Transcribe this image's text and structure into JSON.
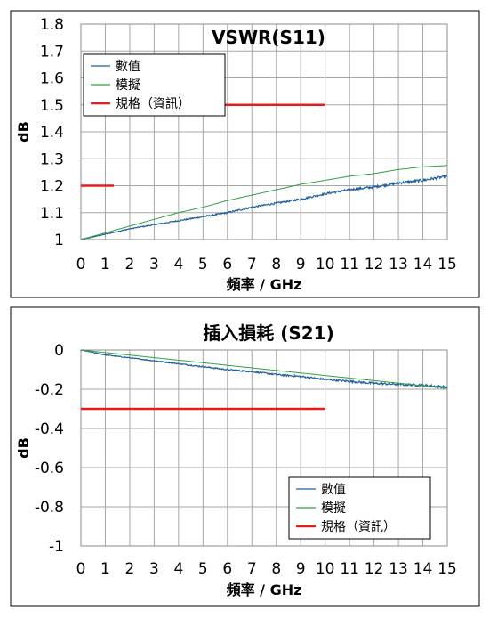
{
  "chart_data": [
    {
      "type": "line",
      "title": "VSWR(S11)",
      "xlabel": "頻率 / GHz",
      "ylabel": "dB",
      "xlim": [
        0,
        15
      ],
      "ylim": [
        1,
        1.8
      ],
      "xticks": [
        0,
        1,
        2,
        3,
        4,
        5,
        6,
        7,
        8,
        9,
        10,
        11,
        12,
        13,
        14,
        15
      ],
      "xtick_labels": [
        "0",
        "1",
        "2",
        "3",
        "4",
        "5",
        "6",
        "7",
        "8",
        "9",
        "10",
        "11",
        "12",
        "13",
        "14",
        "15"
      ],
      "yticks": [
        1,
        1.1,
        1.2,
        1.3,
        1.4,
        1.5,
        1.6,
        1.7,
        1.8
      ],
      "ytick_labels": [
        "1",
        "1.1",
        "1.2",
        "1.3",
        "1.4",
        "1.5",
        "1.6",
        "1.7",
        "1.8"
      ],
      "grid": true,
      "legend_position": "top-left",
      "series": [
        {
          "name": "數值",
          "color": "#1f5f9c",
          "noisy": true,
          "x": [
            0,
            1,
            2,
            3,
            4,
            5,
            6,
            7,
            8,
            9,
            10,
            11,
            12,
            13,
            14,
            15
          ],
          "y": [
            1.0,
            1.02,
            1.04,
            1.055,
            1.07,
            1.085,
            1.1,
            1.12,
            1.135,
            1.15,
            1.17,
            1.185,
            1.195,
            1.21,
            1.22,
            1.235
          ]
        },
        {
          "name": "模擬",
          "color": "#2ea043",
          "noisy": false,
          "x": [
            0,
            1,
            2,
            3,
            4,
            5,
            6,
            7,
            8,
            9,
            10,
            11,
            12,
            13,
            14,
            15
          ],
          "y": [
            1.0,
            1.025,
            1.05,
            1.075,
            1.1,
            1.12,
            1.145,
            1.165,
            1.185,
            1.205,
            1.22,
            1.235,
            1.245,
            1.26,
            1.27,
            1.275
          ]
        },
        {
          "name": "規格（資訊）",
          "color": "#e81c1c",
          "noisy": false,
          "segments": [
            {
              "x": [
                0,
                1.35
              ],
              "y": [
                1.2,
                1.2
              ]
            },
            {
              "x": [
                1.25,
                10
              ],
              "y": [
                1.5,
                1.5
              ]
            }
          ]
        }
      ]
    },
    {
      "type": "line",
      "title": "插入損耗 (S21)",
      "xlabel": "頻率 / GHz",
      "ylabel": "dB",
      "xlim": [
        0,
        15
      ],
      "ylim": [
        -1,
        0
      ],
      "xticks": [
        0,
        1,
        2,
        3,
        4,
        5,
        6,
        7,
        8,
        9,
        10,
        11,
        12,
        13,
        14,
        15
      ],
      "xtick_labels": [
        "0",
        "1",
        "2",
        "3",
        "4",
        "5",
        "6",
        "7",
        "8",
        "9",
        "10",
        "11",
        "12",
        "13",
        "14",
        "15"
      ],
      "yticks": [
        0,
        -0.2,
        -0.4,
        -0.6,
        -0.8,
        -1
      ],
      "ytick_labels": [
        "0",
        "-0.2",
        "-0.4",
        "-0.6",
        "-0.8",
        "-1"
      ],
      "grid": true,
      "legend_position": "bottom-right",
      "series": [
        {
          "name": "數值",
          "color": "#1f5f9c",
          "noisy": true,
          "x": [
            0,
            1,
            2,
            3,
            4,
            5,
            6,
            7,
            8,
            9,
            10,
            11,
            12,
            13,
            14,
            15
          ],
          "y": [
            0,
            -0.025,
            -0.04,
            -0.055,
            -0.07,
            -0.085,
            -0.1,
            -0.11,
            -0.125,
            -0.135,
            -0.15,
            -0.16,
            -0.17,
            -0.175,
            -0.18,
            -0.19
          ]
        },
        {
          "name": "模擬",
          "color": "#2ea043",
          "noisy": false,
          "x": [
            0,
            1,
            2,
            3,
            4,
            5,
            6,
            7,
            8,
            9,
            10,
            11,
            12,
            13,
            14,
            15
          ],
          "y": [
            0,
            -0.013,
            -0.026,
            -0.039,
            -0.052,
            -0.065,
            -0.078,
            -0.091,
            -0.104,
            -0.117,
            -0.13,
            -0.143,
            -0.156,
            -0.169,
            -0.182,
            -0.195
          ]
        },
        {
          "name": "規格（資訊）",
          "color": "#e81c1c",
          "noisy": false,
          "segments": [
            {
              "x": [
                0,
                10
              ],
              "y": [
                -0.3,
                -0.3
              ]
            }
          ]
        }
      ]
    }
  ]
}
